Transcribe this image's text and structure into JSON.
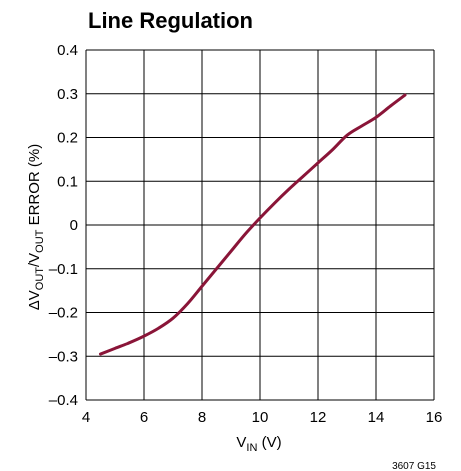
{
  "chart_data": {
    "type": "line",
    "title": "Line Regulation",
    "xlabel": {
      "main": "V",
      "sub": "IN",
      "unit": " (V)"
    },
    "ylabel": {
      "delta": "ΔV",
      "sub1": "OUT",
      "slash": "/V",
      "sub2": "OUT",
      "rest": " ERROR (%)"
    },
    "xlim": [
      4,
      16
    ],
    "ylim": [
      -0.4,
      0.4
    ],
    "x_ticks": [
      "4",
      "6",
      "8",
      "10",
      "12",
      "14",
      "16"
    ],
    "y_ticks": [
      "0.4",
      "0.3",
      "0.2",
      "0.1",
      "0",
      "–0.1",
      "–0.2",
      "–0.3",
      "–0.4"
    ],
    "grid": true,
    "series": [
      {
        "color": "#8a1538",
        "x": [
          4.5,
          5.0,
          5.5,
          6.0,
          6.5,
          7.0,
          7.5,
          8.0,
          8.5,
          9.0,
          9.5,
          10.0,
          10.5,
          11.0,
          11.5,
          12.0,
          12.5,
          13.0,
          13.5,
          14.0,
          14.5,
          15.0
        ],
        "y": [
          -0.295,
          -0.282,
          -0.269,
          -0.254,
          -0.236,
          -0.213,
          -0.18,
          -0.14,
          -0.1,
          -0.06,
          -0.02,
          0.016,
          0.05,
          0.082,
          0.112,
          0.142,
          0.172,
          0.205,
          0.226,
          0.246,
          0.272,
          0.297
        ]
      }
    ],
    "footnote": "3607 G15"
  }
}
